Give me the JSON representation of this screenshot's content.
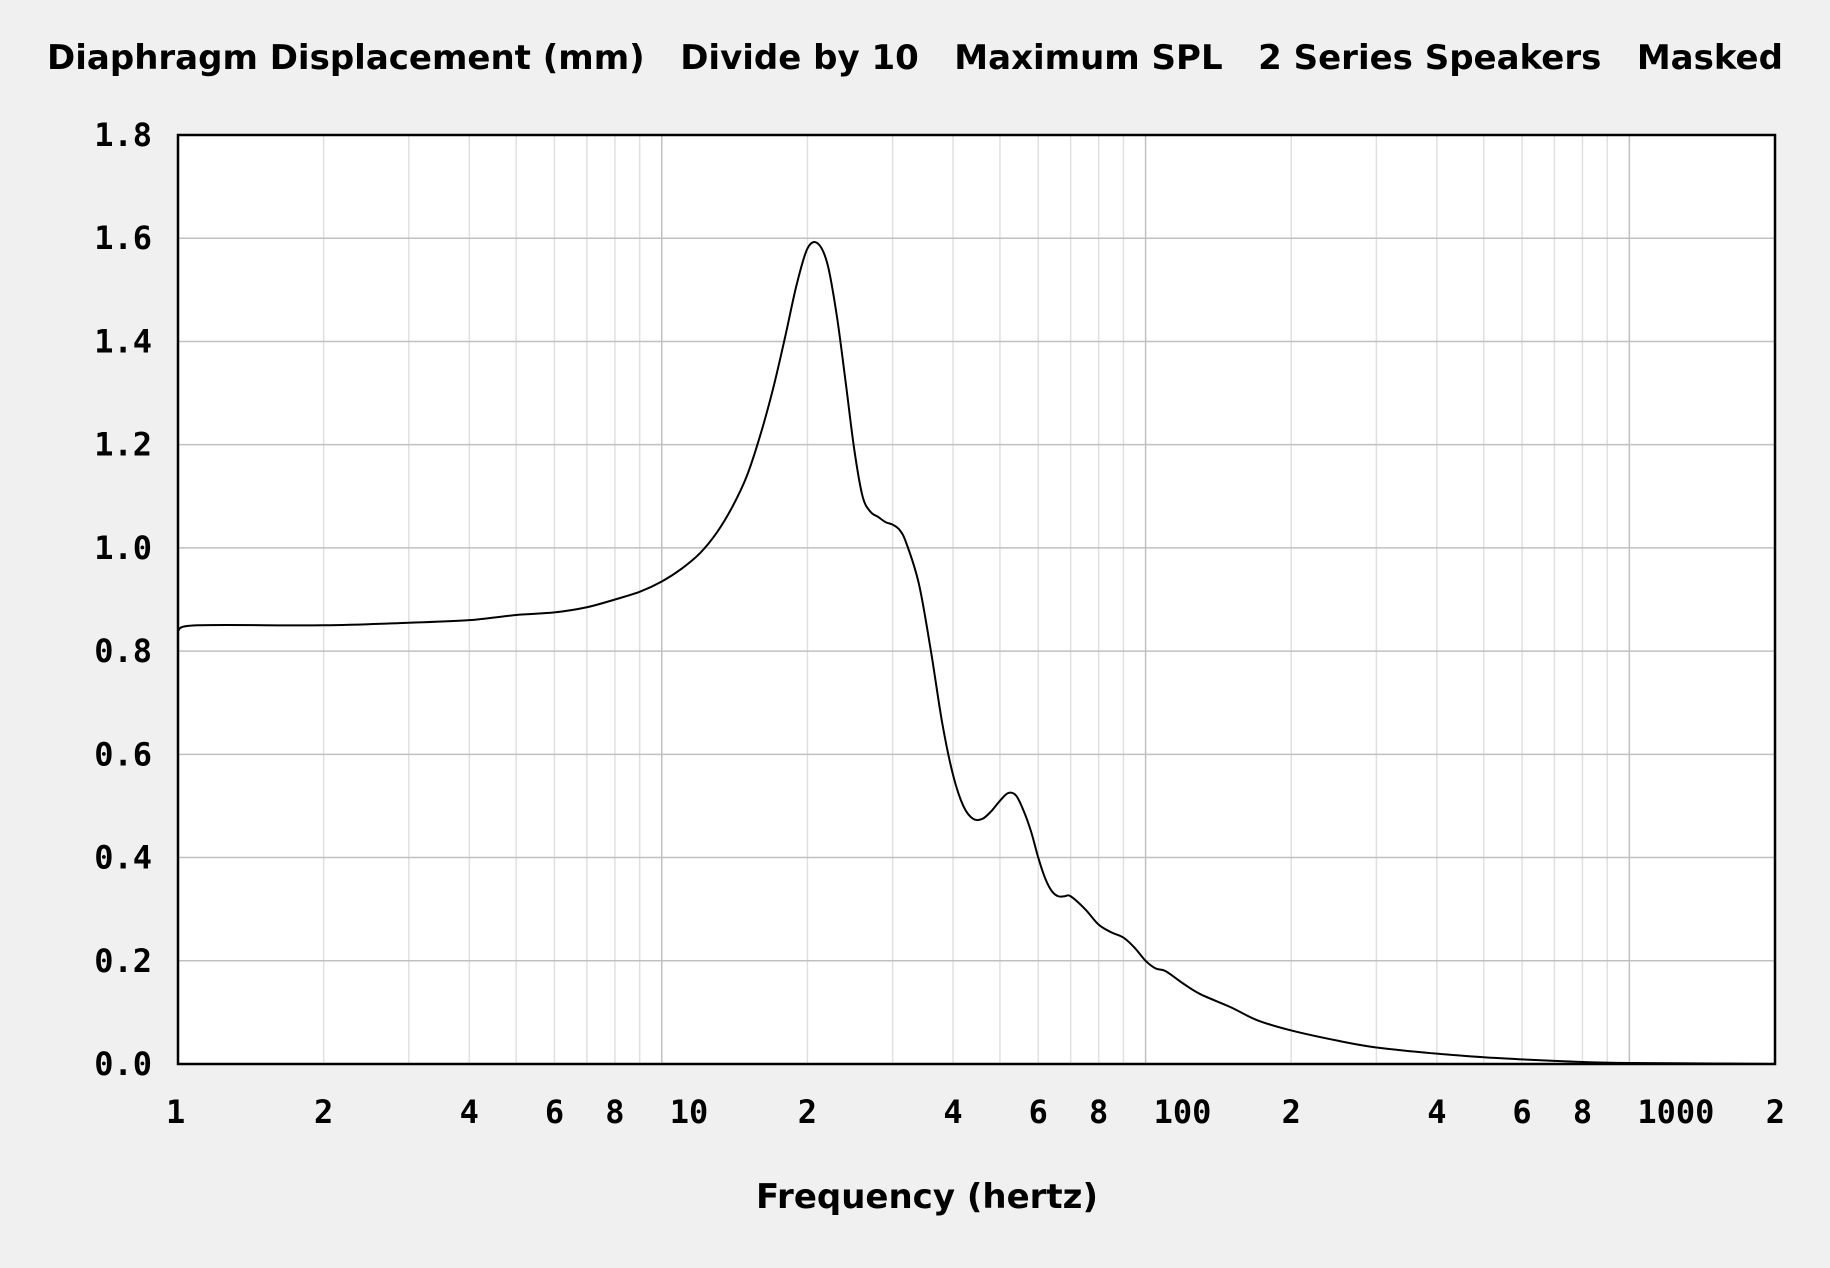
{
  "chart_data": {
    "type": "line",
    "title": "Diaphragm Displacement (mm)   Divide by 10   Maximum SPL   2 Series Speakers   Masked",
    "xlabel": "Frequency (hertz)",
    "ylabel": "",
    "xscale": "log",
    "xlim": [
      1,
      2000
    ],
    "ylim": [
      0,
      1.8
    ],
    "grid": true,
    "legend": "none",
    "colors": {
      "background": "#f0f0f0",
      "plot_background": "#ffffff",
      "major_grid": "#c0c0c0",
      "minor_grid": "#e0e0e0",
      "line": "#000000",
      "frame": "#000000"
    },
    "y_ticks": [
      {
        "value": 0.0,
        "label": "0.0"
      },
      {
        "value": 0.2,
        "label": "0.2"
      },
      {
        "value": 0.4,
        "label": "0.4"
      },
      {
        "value": 0.6,
        "label": "0.6"
      },
      {
        "value": 0.8,
        "label": "0.8"
      },
      {
        "value": 1.0,
        "label": "1.0"
      },
      {
        "value": 1.2,
        "label": "1.2"
      },
      {
        "value": 1.4,
        "label": "1.4"
      },
      {
        "value": 1.6,
        "label": "1.6"
      },
      {
        "value": 1.8,
        "label": "1.8"
      }
    ],
    "x_ticks": [
      {
        "value": 1,
        "label": "1"
      },
      {
        "value": 2,
        "label": "2"
      },
      {
        "value": 4,
        "label": "4"
      },
      {
        "value": 6,
        "label": "6"
      },
      {
        "value": 8,
        "label": "8"
      },
      {
        "value": 10,
        "label": "10"
      },
      {
        "value": 20,
        "label": "2"
      },
      {
        "value": 40,
        "label": "4"
      },
      {
        "value": 60,
        "label": "6"
      },
      {
        "value": 80,
        "label": "8"
      },
      {
        "value": 100,
        "label": "100"
      },
      {
        "value": 200,
        "label": "2"
      },
      {
        "value": 400,
        "label": "4"
      },
      {
        "value": 600,
        "label": "6"
      },
      {
        "value": 800,
        "label": "8"
      },
      {
        "value": 1000,
        "label": "1000"
      },
      {
        "value": 2000,
        "label": "2"
      }
    ],
    "series": [
      {
        "name": "Diaphragm Displacement",
        "x": [
          1,
          1.1,
          2,
          3,
          4,
          5,
          6,
          7,
          8,
          9,
          10,
          11,
          12,
          13,
          14,
          15,
          16,
          17,
          18,
          19,
          20,
          21,
          22,
          23,
          24,
          25,
          26,
          27,
          28,
          29,
          30,
          31,
          32,
          34,
          36,
          38,
          40,
          42,
          44,
          46,
          48,
          50,
          52,
          54,
          56,
          58,
          60,
          62,
          64,
          66,
          68,
          70,
          75,
          80,
          85,
          90,
          95,
          100,
          105,
          110,
          120,
          130,
          150,
          170,
          200,
          250,
          300,
          400,
          500,
          600,
          800,
          1000,
          1500,
          2000
        ],
        "y": [
          0.84,
          0.85,
          0.85,
          0.855,
          0.86,
          0.87,
          0.875,
          0.885,
          0.9,
          0.915,
          0.935,
          0.96,
          0.99,
          1.03,
          1.08,
          1.14,
          1.22,
          1.31,
          1.41,
          1.51,
          1.58,
          1.59,
          1.55,
          1.45,
          1.32,
          1.19,
          1.1,
          1.07,
          1.06,
          1.05,
          1.045,
          1.035,
          1.01,
          0.93,
          0.8,
          0.66,
          0.56,
          0.5,
          0.475,
          0.475,
          0.49,
          0.51,
          0.525,
          0.52,
          0.49,
          0.45,
          0.4,
          0.36,
          0.335,
          0.325,
          0.325,
          0.325,
          0.3,
          0.27,
          0.255,
          0.245,
          0.225,
          0.2,
          0.185,
          0.18,
          0.155,
          0.135,
          0.11,
          0.085,
          0.065,
          0.045,
          0.032,
          0.02,
          0.013,
          0.009,
          0.004,
          0.002,
          0.001,
          0.0
        ]
      }
    ]
  }
}
